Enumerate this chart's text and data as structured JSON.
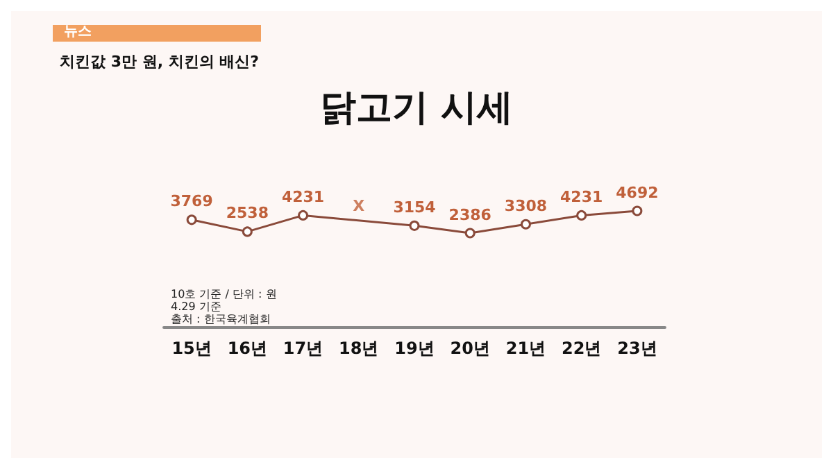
{
  "chart_data": {
    "type": "line",
    "title": "닭고기 시세",
    "subtitle": "치킨값 3만 원, 치킨의 배신?",
    "categories": [
      "15년",
      "16년",
      "17년",
      "18년",
      "19년",
      "20년",
      "21년",
      "22년",
      "23년"
    ],
    "series": [
      {
        "color": "#8a4a3a",
        "values": [
          3769,
          2538,
          4231,
          null,
          3154,
          2386,
          3308,
          4231,
          4692
        ]
      }
    ],
    "data_labels": true,
    "marker": "circle",
    "line_style": "solid",
    "grid": false,
    "annotations": [
      "뉴스",
      "10호 기준 / 단위 : 원",
      "4.29 기준",
      "출처 : 한국육계협회",
      {
        "text": "X",
        "x": "18년",
        "y": 3700
      }
    ]
  }
}
